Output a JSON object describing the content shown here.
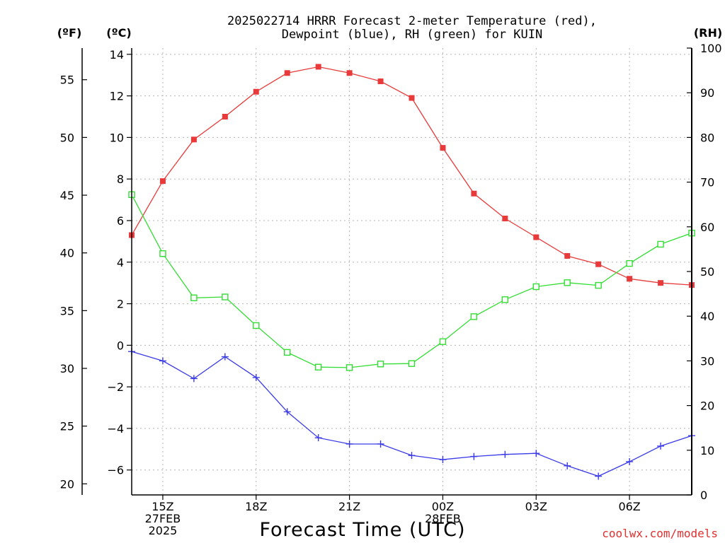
{
  "chart_data": {
    "type": "line",
    "title_lines": [
      "2025022714 HRRR Forecast 2-meter Temperature (red),",
      "Dewpoint (blue), RH (green) for KUIN"
    ],
    "xlabel": "Forecast Time (UTC)",
    "unit_labels": {
      "fahrenheit": "(ºF)",
      "celsius": "(ºC)",
      "rh": "(RH)"
    },
    "credit": "coolwx.com/models",
    "x_hours": [
      14,
      15,
      16,
      17,
      18,
      19,
      20,
      21,
      22,
      23,
      24,
      25,
      26,
      27,
      28,
      29,
      30,
      31,
      32
    ],
    "x_ticks": [
      {
        "hour": 15,
        "lines": [
          "15Z",
          "27FEB",
          "2025"
        ]
      },
      {
        "hour": 18,
        "lines": [
          "18Z"
        ]
      },
      {
        "hour": 21,
        "lines": [
          "21Z"
        ]
      },
      {
        "hour": 24,
        "lines": [
          "00Z",
          "28FEB"
        ]
      },
      {
        "hour": 27,
        "lines": [
          "03Z"
        ]
      },
      {
        "hour": 30,
        "lines": [
          "06Z"
        ]
      }
    ],
    "celsius_axis": {
      "range": [
        -7.2,
        14.3
      ],
      "ticks": [
        "14",
        "12",
        "10",
        "8",
        "6",
        "4",
        "2",
        "0",
        "−2",
        "−4",
        "−6"
      ],
      "tick_values": [
        14,
        12,
        10,
        8,
        6,
        4,
        2,
        0,
        -2,
        -4,
        -6
      ]
    },
    "fahrenheit_axis": {
      "ticks": [
        "55",
        "50",
        "45",
        "40",
        "35",
        "30",
        "25",
        "20"
      ],
      "tick_values": [
        55,
        50,
        45,
        40,
        35,
        30,
        25,
        20
      ]
    },
    "rh_axis": {
      "range": [
        0,
        100
      ],
      "ticks": [
        "100",
        "90",
        "80",
        "70",
        "60",
        "50",
        "40",
        "30",
        "20",
        "10",
        "0"
      ],
      "tick_values": [
        100,
        90,
        80,
        70,
        60,
        50,
        40,
        30,
        20,
        10,
        0
      ]
    },
    "grid": true,
    "series": [
      {
        "key": "temperature",
        "axis": "celsius",
        "color": "#e83a3a",
        "marker": "filled-square",
        "values": [
          5.3,
          7.9,
          9.9,
          11.0,
          12.2,
          13.1,
          13.4,
          13.1,
          12.7,
          11.9,
          9.5,
          7.3,
          6.1,
          5.2,
          4.3,
          3.9,
          3.2,
          3.0,
          2.9
        ]
      },
      {
        "key": "dewpoint",
        "axis": "celsius",
        "color": "#3a3ae8",
        "marker": "plus",
        "values": [
          -0.3,
          -0.75,
          -1.6,
          -0.55,
          -1.55,
          -3.2,
          -4.45,
          -4.75,
          -4.75,
          -5.3,
          -5.5,
          -5.35,
          -5.25,
          -5.2,
          -5.8,
          -6.3,
          -5.6,
          -4.85,
          -4.35
        ]
      },
      {
        "key": "rh",
        "axis": "rh",
        "color": "#33dd33",
        "marker": "open-square",
        "values": [
          67.2,
          54.0,
          44.1,
          44.3,
          37.9,
          31.9,
          28.6,
          28.5,
          29.3,
          29.4,
          34.3,
          39.9,
          43.7,
          46.6,
          47.5,
          46.9,
          51.8,
          56.1,
          58.6
        ]
      }
    ]
  }
}
